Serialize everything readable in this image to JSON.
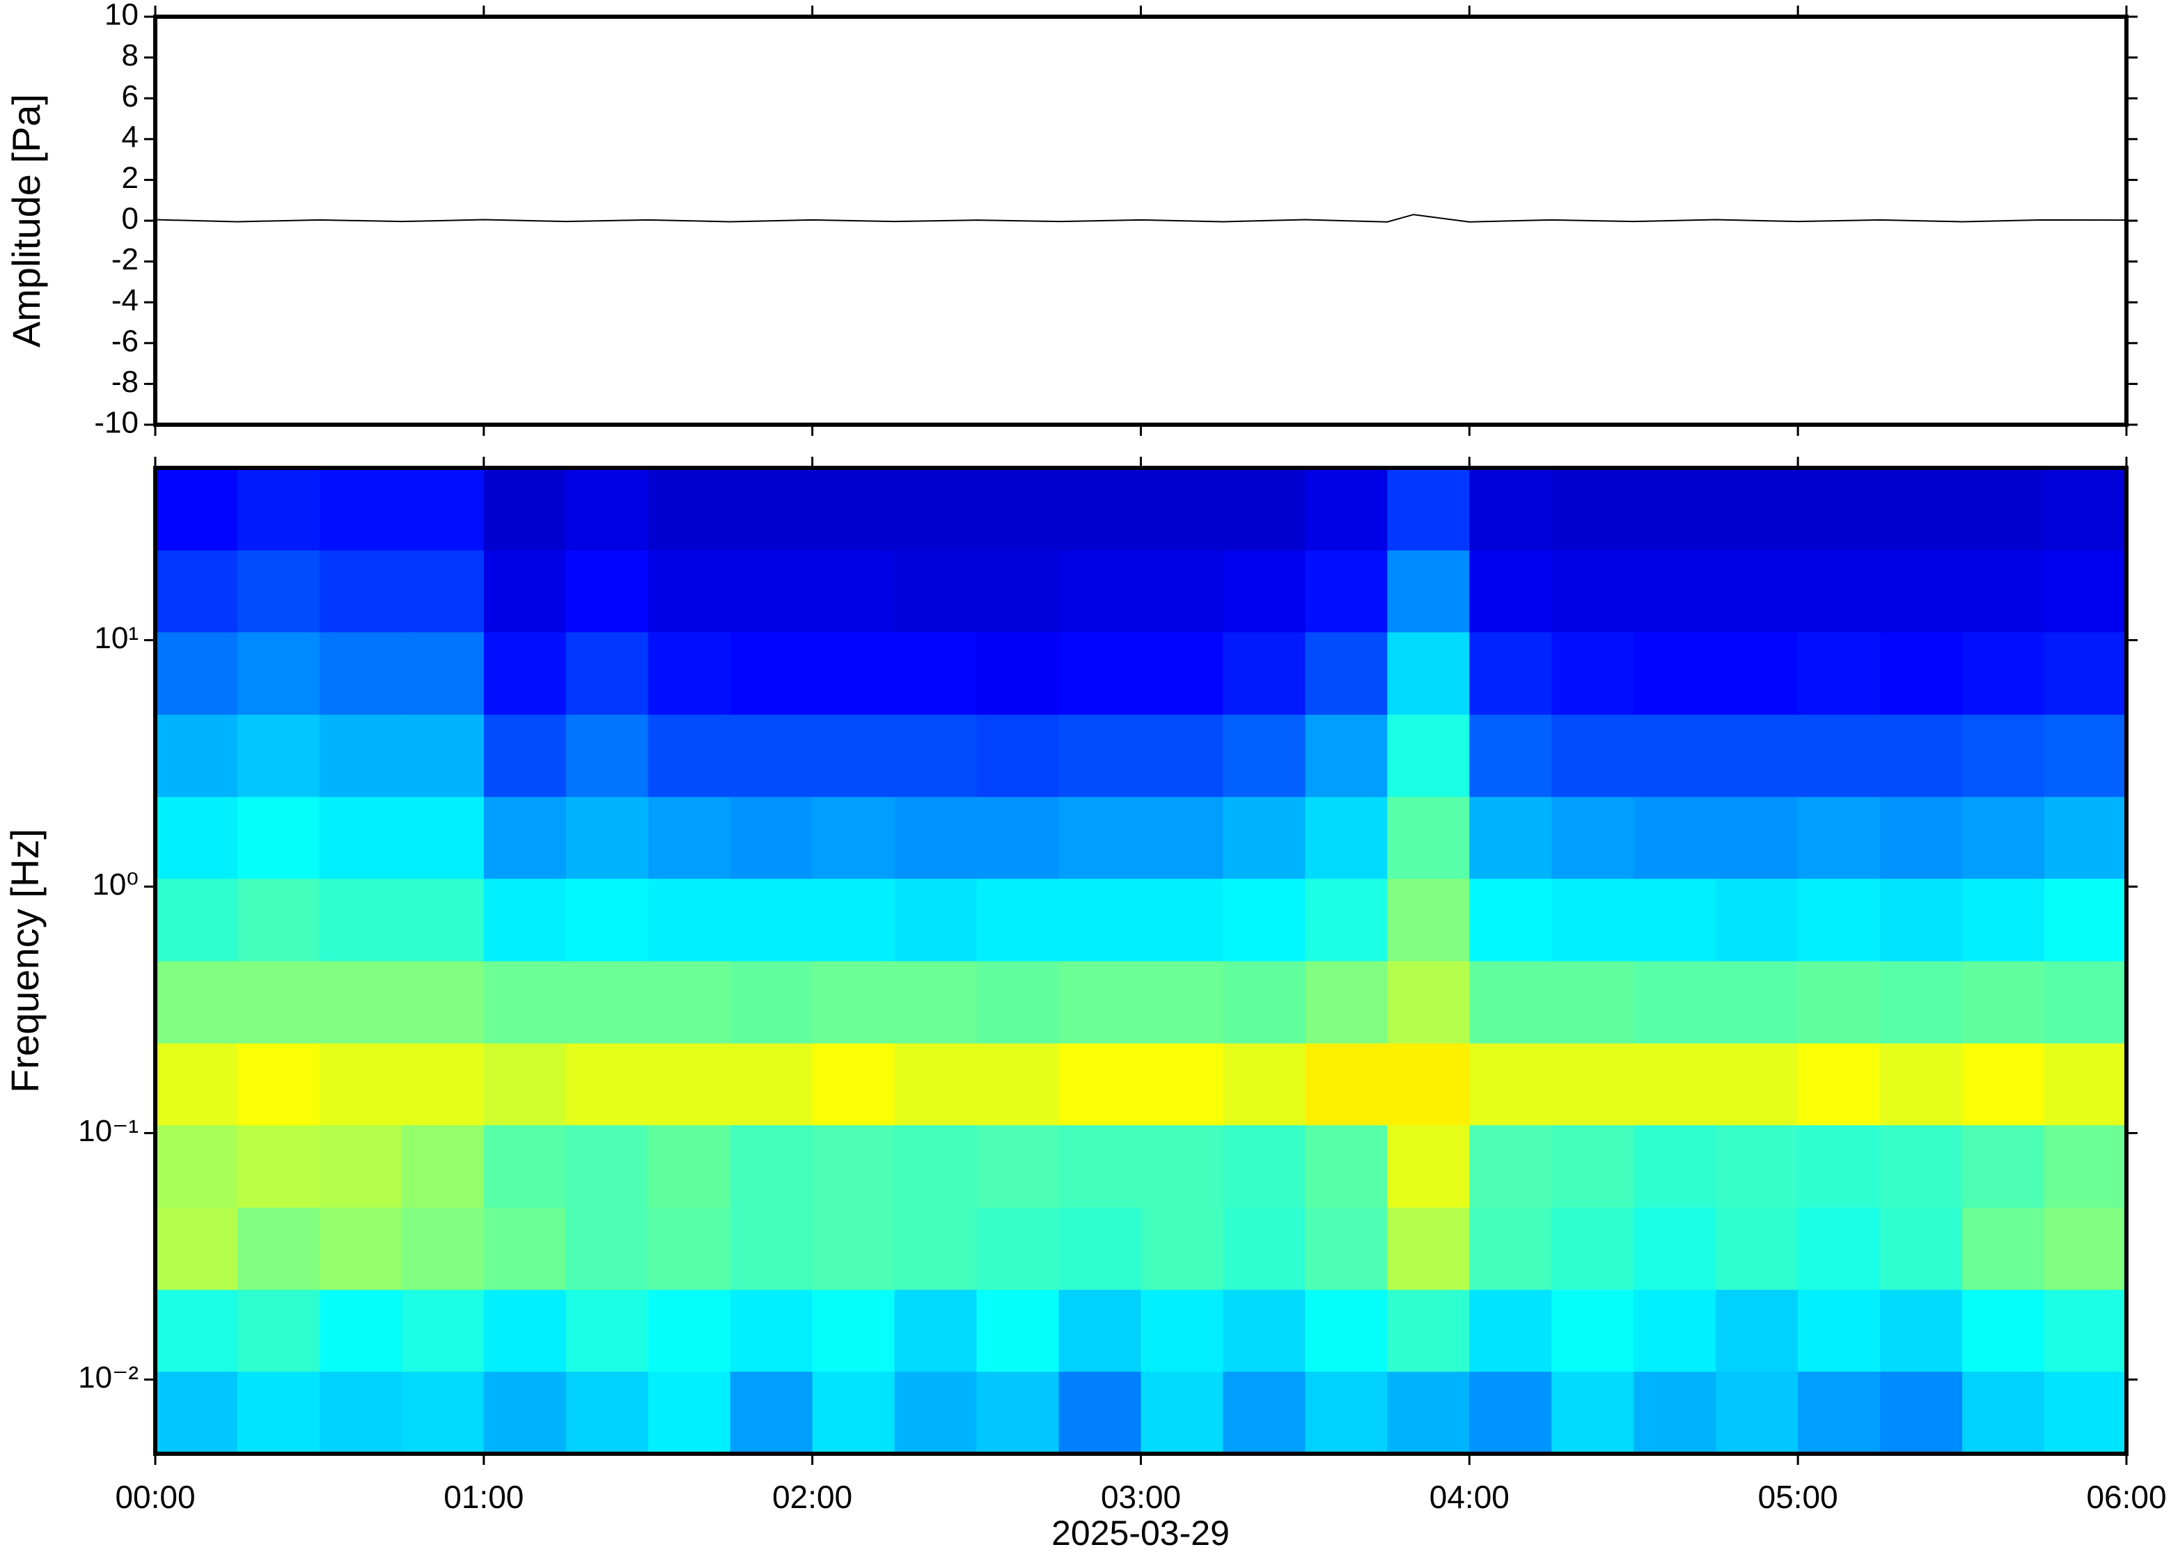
{
  "chart_data": [
    {
      "type": "line",
      "y_label": "Amplitude [Pa]",
      "x": [
        0,
        0.25,
        0.5,
        0.75,
        1,
        1.25,
        1.5,
        1.75,
        2,
        2.25,
        2.5,
        2.75,
        3,
        3.25,
        3.5,
        3.75,
        3.83,
        4,
        4.25,
        4.5,
        4.75,
        5,
        5.25,
        5.5,
        5.75,
        6
      ],
      "series": [
        {
          "color": "#000000",
          "values": [
            0.05,
            -0.05,
            0.04,
            -0.04,
            0.05,
            -0.04,
            0.04,
            -0.05,
            0.04,
            -0.04,
            0.03,
            -0.04,
            0.04,
            -0.05,
            0.05,
            -0.06,
            0.3,
            -0.06,
            0.04,
            -0.04,
            0.05,
            -0.04,
            0.04,
            -0.05,
            0.04,
            0.03
          ]
        }
      ],
      "xlim": [
        0,
        6
      ],
      "xticks": [
        0,
        1,
        2,
        3,
        4,
        5,
        6
      ],
      "ylim": [
        -10,
        10
      ],
      "yticks": [
        -10,
        -8,
        -6,
        -4,
        -2,
        0,
        2,
        4,
        6,
        8,
        10
      ]
    },
    {
      "type": "heatmap",
      "y_label": "Frequency [Hz]",
      "x_label": "2025-03-29",
      "xlim": [
        0,
        6
      ],
      "xticks": [
        {
          "value": 0,
          "label": "00:00"
        },
        {
          "value": 1,
          "label": "01:00"
        },
        {
          "value": 2,
          "label": "02:00"
        },
        {
          "value": 3,
          "label": "03:00"
        },
        {
          "value": 4,
          "label": "04:00"
        },
        {
          "value": 5,
          "label": "05:00"
        },
        {
          "value": 6,
          "label": "06:00"
        }
      ],
      "log_y": true,
      "ylim": [
        0.005,
        50
      ],
      "yticks": [
        {
          "value": 0.01,
          "label": "10⁻²"
        },
        {
          "value": 0.1,
          "label": "10⁻¹"
        },
        {
          "value": 1,
          "label": "10⁰"
        },
        {
          "value": 10,
          "label": "10¹"
        }
      ],
      "colormap": "jet",
      "time_bins": [
        0,
        0.25,
        0.5,
        0.75,
        1,
        1.25,
        1.5,
        1.75,
        2,
        2.25,
        2.5,
        2.75,
        3,
        3.25,
        3.5,
        3.75,
        4,
        4.25,
        4.5,
        4.75,
        5,
        5.25,
        5.5,
        5.75,
        6
      ],
      "freq_bins": [
        0.005,
        0.0108,
        0.0232,
        0.05,
        0.108,
        0.232,
        0.5,
        1.08,
        2.32,
        5,
        10.8,
        23.2,
        50
      ],
      "z": [
        [
          0.32,
          0.35,
          0.33,
          0.34,
          0.3,
          0.33,
          0.36,
          0.28,
          0.35,
          0.3,
          0.32,
          0.25,
          0.34,
          0.28,
          0.33,
          0.3,
          0.27,
          0.34,
          0.3,
          0.32,
          0.28,
          0.26,
          0.33,
          0.35
        ],
        [
          0.4,
          0.42,
          0.38,
          0.4,
          0.36,
          0.4,
          0.38,
          0.36,
          0.38,
          0.34,
          0.38,
          0.33,
          0.36,
          0.34,
          0.38,
          0.42,
          0.35,
          0.38,
          0.36,
          0.33,
          0.36,
          0.34,
          0.38,
          0.4
        ],
        [
          0.55,
          0.5,
          0.52,
          0.5,
          0.48,
          0.45,
          0.46,
          0.44,
          0.45,
          0.44,
          0.43,
          0.42,
          0.44,
          0.42,
          0.45,
          0.55,
          0.44,
          0.42,
          0.4,
          0.42,
          0.4,
          0.42,
          0.48,
          0.5
        ],
        [
          0.54,
          0.56,
          0.55,
          0.52,
          0.46,
          0.45,
          0.47,
          0.44,
          0.45,
          0.44,
          0.45,
          0.44,
          0.44,
          0.43,
          0.46,
          0.6,
          0.45,
          0.44,
          0.42,
          0.43,
          0.42,
          0.43,
          0.45,
          0.48
        ],
        [
          0.6,
          0.62,
          0.6,
          0.6,
          0.58,
          0.6,
          0.6,
          0.6,
          0.62,
          0.6,
          0.6,
          0.62,
          0.62,
          0.6,
          0.64,
          0.64,
          0.6,
          0.6,
          0.6,
          0.6,
          0.62,
          0.6,
          0.62,
          0.6
        ],
        [
          0.5,
          0.5,
          0.5,
          0.5,
          0.48,
          0.48,
          0.48,
          0.47,
          0.48,
          0.48,
          0.47,
          0.48,
          0.48,
          0.47,
          0.5,
          0.55,
          0.47,
          0.47,
          0.46,
          0.46,
          0.47,
          0.46,
          0.47,
          0.46
        ],
        [
          0.42,
          0.44,
          0.42,
          0.42,
          0.36,
          0.37,
          0.36,
          0.36,
          0.36,
          0.35,
          0.36,
          0.36,
          0.36,
          0.37,
          0.4,
          0.5,
          0.37,
          0.36,
          0.36,
          0.35,
          0.36,
          0.35,
          0.36,
          0.38
        ],
        [
          0.36,
          0.38,
          0.36,
          0.36,
          0.28,
          0.3,
          0.28,
          0.27,
          0.28,
          0.27,
          0.27,
          0.28,
          0.28,
          0.3,
          0.34,
          0.46,
          0.3,
          0.28,
          0.27,
          0.27,
          0.28,
          0.27,
          0.28,
          0.3
        ],
        [
          0.3,
          0.32,
          0.3,
          0.3,
          0.2,
          0.24,
          0.2,
          0.2,
          0.2,
          0.2,
          0.19,
          0.2,
          0.2,
          0.22,
          0.28,
          0.4,
          0.22,
          0.2,
          0.2,
          0.2,
          0.2,
          0.2,
          0.21,
          0.22
        ],
        [
          0.24,
          0.26,
          0.24,
          0.24,
          0.14,
          0.18,
          0.14,
          0.13,
          0.13,
          0.13,
          0.12,
          0.13,
          0.13,
          0.15,
          0.2,
          0.34,
          0.16,
          0.14,
          0.13,
          0.13,
          0.14,
          0.13,
          0.14,
          0.15
        ],
        [
          0.18,
          0.2,
          0.18,
          0.18,
          0.1,
          0.13,
          0.1,
          0.1,
          0.1,
          0.09,
          0.09,
          0.1,
          0.1,
          0.11,
          0.14,
          0.26,
          0.11,
          0.1,
          0.1,
          0.1,
          0.1,
          0.1,
          0.1,
          0.11
        ],
        [
          0.13,
          0.15,
          0.14,
          0.14,
          0.08,
          0.1,
          0.08,
          0.08,
          0.08,
          0.08,
          0.08,
          0.08,
          0.08,
          0.08,
          0.1,
          0.18,
          0.09,
          0.08,
          0.08,
          0.08,
          0.08,
          0.08,
          0.08,
          0.09
        ]
      ]
    }
  ]
}
